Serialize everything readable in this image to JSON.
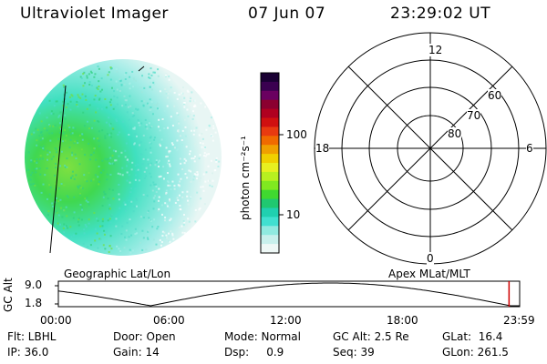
{
  "header": {
    "instrument": "Ultraviolet Imager",
    "date": "07 Jun 07",
    "time": "23:29:02 UT"
  },
  "colorbar": {
    "unit_label": "photon cm⁻²s⁻¹",
    "ticks": [
      {
        "label": "100",
        "value": 100
      },
      {
        "label": "10",
        "value": 10
      }
    ],
    "colors_top_to_bottom": [
      "#1a0033",
      "#3a0050",
      "#6a0060",
      "#8b0030",
      "#b00020",
      "#d01010",
      "#e83a10",
      "#f06a00",
      "#f0a000",
      "#f0d000",
      "#e8f020",
      "#b8f020",
      "#80e820",
      "#40d830",
      "#20c870",
      "#20d0b0",
      "#40e0d0",
      "#90eae0",
      "#c8f0ec",
      "#eef8f6"
    ]
  },
  "labels": {
    "geo": "Geographic Lat/Lon",
    "apex": "Apex MLat/MLT"
  },
  "polar": {
    "mlt": {
      "top": "12",
      "left": "18",
      "right": "6",
      "bottom": "0"
    },
    "lat_rings": [
      "60",
      "70",
      "80"
    ]
  },
  "timeline": {
    "ylabel": "GC Alt",
    "y_ticks": [
      "9.0",
      "1.8"
    ],
    "x_ticks": [
      "00:00",
      "06:00",
      "12:00",
      "18:00",
      "23:59"
    ],
    "current_time_fraction": 0.977
  },
  "info": {
    "flt": "Flt: LBHL",
    "ip": "IP: 36.0",
    "door": "Door: Open",
    "gain": "Gain: 14",
    "mode": "Mode: Normal",
    "dsp": "Dsp:     0.9",
    "gcalt": "GC Alt: 2.5 Re",
    "seq": "Seq: 39",
    "glat": "GLat:  16.4",
    "glon": "GLon: 261.5"
  }
}
